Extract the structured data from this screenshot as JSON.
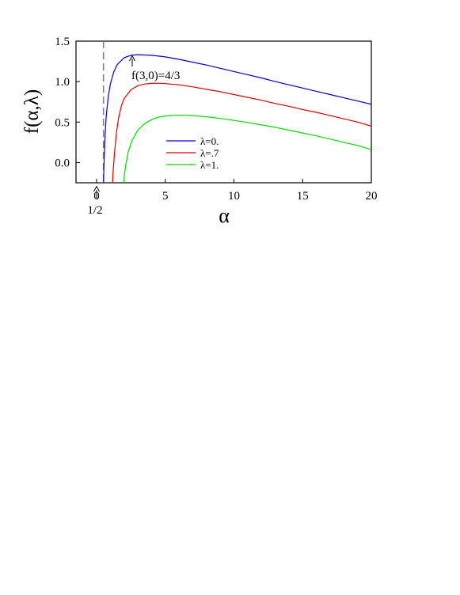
{
  "chart_data": {
    "type": "line",
    "xlabel": "α",
    "ylabel": "f(α,λ)",
    "xlim": [
      -1.5,
      20
    ],
    "ylim": [
      -0.25,
      1.5
    ],
    "xticks": [
      0,
      5,
      10,
      15,
      20
    ],
    "xtick_labels": [
      "0",
      "5",
      "10",
      "15",
      "20"
    ],
    "yticks": [
      0.0,
      0.5,
      1.0,
      1.5
    ],
    "ytick_labels": [
      "0.0",
      "0.5",
      "1.0",
      "1.5"
    ],
    "grid": false,
    "legend_position": "center-right",
    "vline": {
      "x": 0.5,
      "style": "dashed",
      "color": "#808080"
    },
    "annotations": [
      {
        "text": "f(3,0)=4/3",
        "x": 3,
        "y": 1.3333
      },
      {
        "text": "1/2",
        "x": 0.5,
        "y": -0.25
      }
    ],
    "series": [
      {
        "name": "λ=0.",
        "color": "#0000cc",
        "x": [
          0.5,
          0.53,
          0.6,
          0.7,
          0.85,
          1.0,
          1.25,
          1.5,
          2.0,
          2.5,
          3.0,
          4.0,
          5.0,
          6.0,
          7.0,
          8.0,
          9.0,
          10.0,
          11.0,
          12.0,
          13.0,
          14.0,
          15.0,
          16.0,
          17.0,
          18.0,
          19.0,
          20.0
        ],
        "y": [
          -0.3,
          -0.08,
          0.28,
          0.58,
          0.82,
          0.97,
          1.12,
          1.21,
          1.295,
          1.325,
          1.333,
          1.325,
          1.305,
          1.275,
          1.24,
          1.205,
          1.165,
          1.125,
          1.085,
          1.045,
          1.0,
          0.96,
          0.92,
          0.88,
          0.84,
          0.8,
          0.76,
          0.72
        ]
      },
      {
        "name": "λ=.7",
        "color": "#dd0000",
        "x": [
          1.15,
          1.2,
          1.3,
          1.45,
          1.6,
          1.8,
          2.0,
          2.5,
          3.0,
          3.5,
          4.0,
          4.5,
          5.0,
          6.0,
          7.0,
          8.0,
          9.0,
          10.0,
          11.0,
          12.0,
          13.0,
          14.0,
          15.0,
          16.0,
          17.0,
          18.0,
          19.0,
          20.0
        ],
        "y": [
          -0.3,
          -0.12,
          0.12,
          0.38,
          0.55,
          0.7,
          0.79,
          0.9,
          0.95,
          0.97,
          0.978,
          0.98,
          0.975,
          0.96,
          0.935,
          0.905,
          0.875,
          0.84,
          0.805,
          0.77,
          0.73,
          0.695,
          0.655,
          0.62,
          0.58,
          0.54,
          0.5,
          0.45
        ]
      },
      {
        "name": "λ=1.",
        "color": "#00dd00",
        "x": [
          1.95,
          2.0,
          2.1,
          2.3,
          2.6,
          3.0,
          3.5,
          4.0,
          4.5,
          5.0,
          5.5,
          6.0,
          6.5,
          7.0,
          8.0,
          9.0,
          10.0,
          11.0,
          12.0,
          13.0,
          14.0,
          15.0,
          16.0,
          17.0,
          18.0,
          19.0,
          20.0
        ],
        "y": [
          -0.3,
          -0.2,
          -0.05,
          0.13,
          0.28,
          0.4,
          0.48,
          0.53,
          0.56,
          0.575,
          0.582,
          0.585,
          0.584,
          0.58,
          0.565,
          0.545,
          0.52,
          0.495,
          0.465,
          0.435,
          0.4,
          0.365,
          0.33,
          0.29,
          0.25,
          0.21,
          0.16
        ]
      }
    ]
  }
}
